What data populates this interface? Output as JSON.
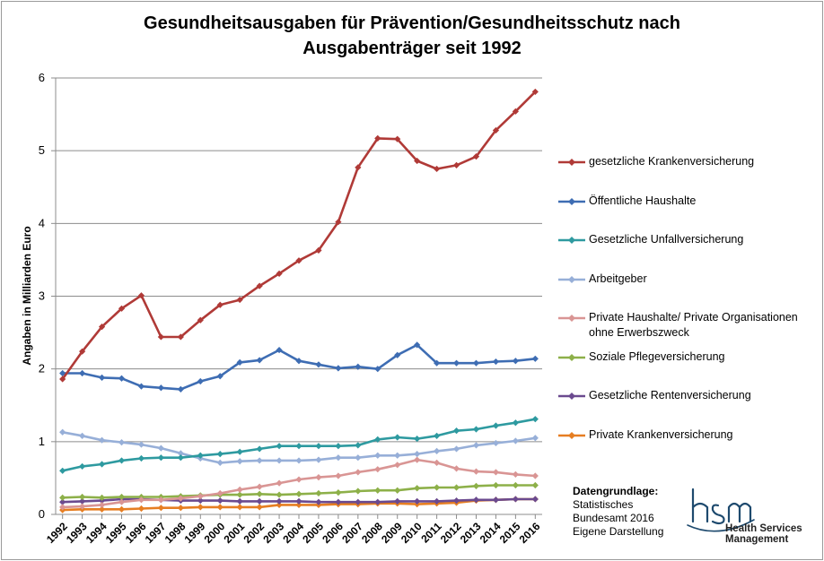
{
  "chart_data": {
    "type": "line",
    "title": "Gesundheitsausgaben für Prävention/Gesundheitsschutz nach Ausgabenträger seit 1992",
    "title_lines": [
      "Gesundheitsausgaben für Prävention/Gesundheitsschutz nach",
      "Ausgabenträger seit 1992"
    ],
    "xlabel": "",
    "ylabel": "Angaben in Milliarden Euro",
    "ylim": [
      0,
      6
    ],
    "yticks": [
      "0",
      "1",
      "2",
      "3",
      "4",
      "5",
      "6"
    ],
    "x": [
      "1992",
      "1993",
      "1994",
      "1995",
      "1996",
      "1997",
      "1998",
      "1999",
      "2000",
      "2001",
      "2002",
      "2003",
      "2004",
      "2005",
      "2006",
      "2007",
      "2008",
      "2009",
      "2010",
      "2011",
      "2012",
      "2013",
      "2014",
      "2015",
      "2016"
    ],
    "grid": "horizontal",
    "legend_position": "right",
    "series": [
      {
        "name": "gesetzliche Krankenversicherung",
        "color": "#b03a37",
        "values": [
          1.86,
          2.24,
          2.58,
          2.83,
          3.01,
          2.44,
          2.44,
          2.67,
          2.88,
          2.95,
          3.14,
          3.31,
          3.49,
          3.63,
          4.02,
          4.77,
          5.17,
          5.16,
          4.86,
          4.75,
          4.8,
          4.92,
          5.28,
          5.54,
          5.81
        ]
      },
      {
        "name": "Öffentliche Haushalte",
        "color": "#3e6db3",
        "values": [
          1.94,
          1.94,
          1.88,
          1.87,
          1.76,
          1.74,
          1.72,
          1.83,
          1.9,
          2.09,
          2.12,
          2.26,
          2.11,
          2.06,
          2.01,
          2.03,
          2.0,
          2.19,
          2.33,
          2.08,
          2.08,
          2.08,
          2.1,
          2.11,
          2.14
        ]
      },
      {
        "name": "Gesetzliche Unfallversicherung",
        "color": "#2e9aa0",
        "values": [
          0.6,
          0.66,
          0.69,
          0.74,
          0.77,
          0.78,
          0.78,
          0.81,
          0.83,
          0.86,
          0.9,
          0.94,
          0.94,
          0.94,
          0.94,
          0.95,
          1.03,
          1.06,
          1.04,
          1.08,
          1.15,
          1.17,
          1.22,
          1.26,
          1.31
        ]
      },
      {
        "name": "Arbeitgeber",
        "color": "#97afd8",
        "values": [
          1.13,
          1.08,
          1.02,
          0.99,
          0.96,
          0.91,
          0.84,
          0.77,
          0.71,
          0.73,
          0.74,
          0.74,
          0.74,
          0.75,
          0.78,
          0.78,
          0.81,
          0.81,
          0.83,
          0.87,
          0.9,
          0.95,
          0.98,
          1.01,
          1.05
        ]
      },
      {
        "name": "Private Haushalte/ Private Organisationen ohne Erwerbszweck",
        "color": "#d99594",
        "values": [
          0.1,
          0.11,
          0.13,
          0.17,
          0.2,
          0.2,
          0.22,
          0.25,
          0.29,
          0.34,
          0.38,
          0.43,
          0.48,
          0.51,
          0.53,
          0.58,
          0.62,
          0.68,
          0.75,
          0.71,
          0.63,
          0.59,
          0.58,
          0.55,
          0.53
        ]
      },
      {
        "name": "Soziale Pflegeversicherung",
        "color": "#8db049",
        "values": [
          0.23,
          0.24,
          0.23,
          0.24,
          0.24,
          0.24,
          0.25,
          0.26,
          0.27,
          0.27,
          0.28,
          0.27,
          0.28,
          0.29,
          0.3,
          0.32,
          0.33,
          0.33,
          0.36,
          0.37,
          0.37,
          0.39,
          0.4,
          0.4,
          0.4
        ]
      },
      {
        "name": "Gesetzliche Rentenversicherung",
        "color": "#6b4a8f",
        "values": [
          0.17,
          0.18,
          0.19,
          0.21,
          0.21,
          0.2,
          0.19,
          0.19,
          0.19,
          0.18,
          0.18,
          0.18,
          0.18,
          0.17,
          0.17,
          0.17,
          0.17,
          0.18,
          0.18,
          0.18,
          0.19,
          0.2,
          0.2,
          0.21,
          0.21
        ]
      },
      {
        "name": "Private Krankenversicherung",
        "color": "#e67e22",
        "values": [
          0.06,
          0.07,
          0.07,
          0.07,
          0.08,
          0.09,
          0.09,
          0.1,
          0.1,
          0.1,
          0.1,
          0.13,
          0.13,
          0.13,
          0.14,
          0.14,
          0.15,
          0.15,
          0.14,
          0.15,
          0.16,
          0.19,
          0.2,
          0.21,
          0.21
        ]
      }
    ]
  },
  "source_note": {
    "title": "Datengrundlage:",
    "lines": [
      "Statistisches",
      "Bundesamt 2016",
      "Eigene Darstellung"
    ]
  },
  "logo": {
    "lines": [
      "Health Services",
      "Management"
    ],
    "color": "#1e4a6e"
  }
}
